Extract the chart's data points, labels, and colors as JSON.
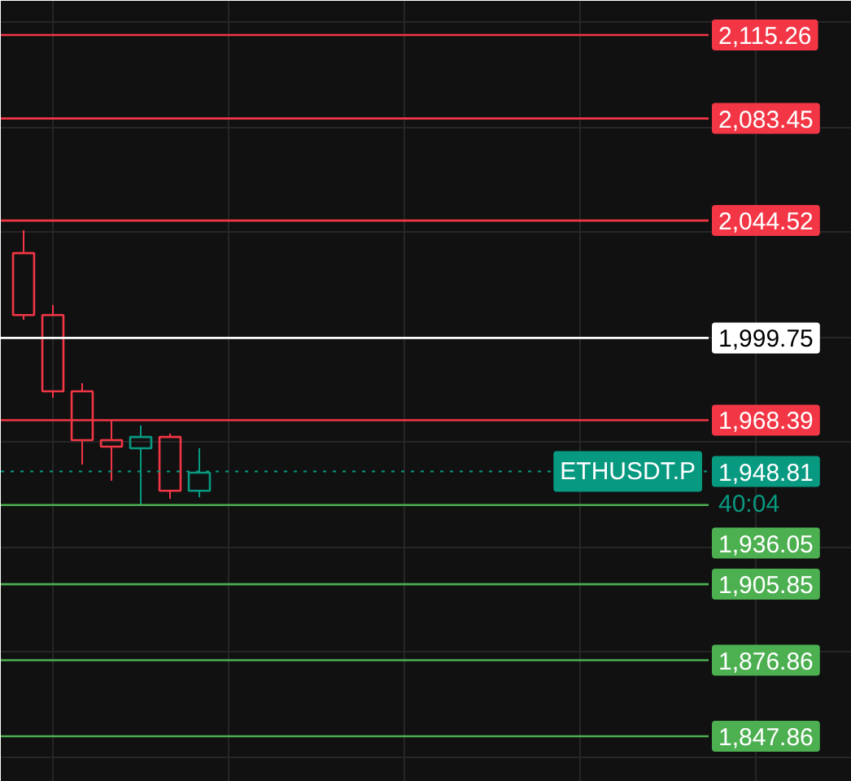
{
  "chart_data": {
    "type": "candlestick",
    "categories": [
      null,
      null,
      null,
      null,
      null,
      null,
      null
    ],
    "ohlc": [
      [
        2032.1,
        2040.8,
        2006.7,
        2008.5
      ],
      [
        2008.5,
        2012.3,
        1976.9,
        1979.4
      ],
      [
        1979.4,
        1982.5,
        1951.5,
        1960.8
      ],
      [
        1960.8,
        1968.2,
        1945.3,
        1958.3
      ],
      [
        1957.7,
        1966.4,
        1936.0,
        1962.0
      ],
      [
        1962.0,
        1963.3,
        1938.4,
        1941.5
      ],
      [
        1941.5,
        1957.7,
        1939.0,
        1948.4
      ]
    ],
    "colors": [
      "#f23645",
      "#f23645",
      "#f23645",
      "#f23645",
      "#089981",
      "#f23645",
      "#089981"
    ],
    "ylim": [
      1830.5,
      2128.3
    ],
    "yticks": [
      {
        "value": 1840,
        "label": null
      },
      {
        "value": 1880,
        "label": null
      },
      {
        "value": 1920,
        "label": null
      },
      {
        "value": 1960,
        "label": null
      },
      {
        "value": 2000,
        "label": null
      },
      {
        "value": 2040,
        "label": null
      },
      {
        "value": 2080,
        "label": null
      },
      {
        "value": 2120,
        "label": null
      }
    ],
    "grid": true,
    "ref_lines": [
      {
        "axis": "y",
        "value": 2115.26,
        "label": "2,115.26",
        "color": "#f23645"
      },
      {
        "axis": "y",
        "value": 2083.45,
        "label": "2,083.45",
        "color": "#f23645"
      },
      {
        "axis": "y",
        "value": 2044.52,
        "label": "2,044.52",
        "color": "#f23645"
      },
      {
        "axis": "y",
        "value": 1999.75,
        "label": "1,999.75",
        "color": "#ffffff"
      },
      {
        "axis": "y",
        "value": 1968.39,
        "label": "1,968.39",
        "color": "#f23645"
      },
      {
        "axis": "y",
        "value": 1948.81,
        "label": "1,948.81",
        "color": "#089981",
        "line_style": "dotted"
      },
      {
        "axis": "y",
        "value": 1936.05,
        "label": "1,936.05",
        "color": "#4caf50"
      },
      {
        "axis": "y",
        "value": 1905.85,
        "label": "1,905.85",
        "color": "#4caf50"
      },
      {
        "axis": "y",
        "value": 1876.86,
        "label": "1,876.86",
        "color": "#4caf50"
      },
      {
        "axis": "y",
        "value": 1847.86,
        "label": "1,847.86",
        "color": "#4caf50"
      }
    ],
    "annotations": [
      "ETHUSDT.P",
      "40:04"
    ]
  }
}
